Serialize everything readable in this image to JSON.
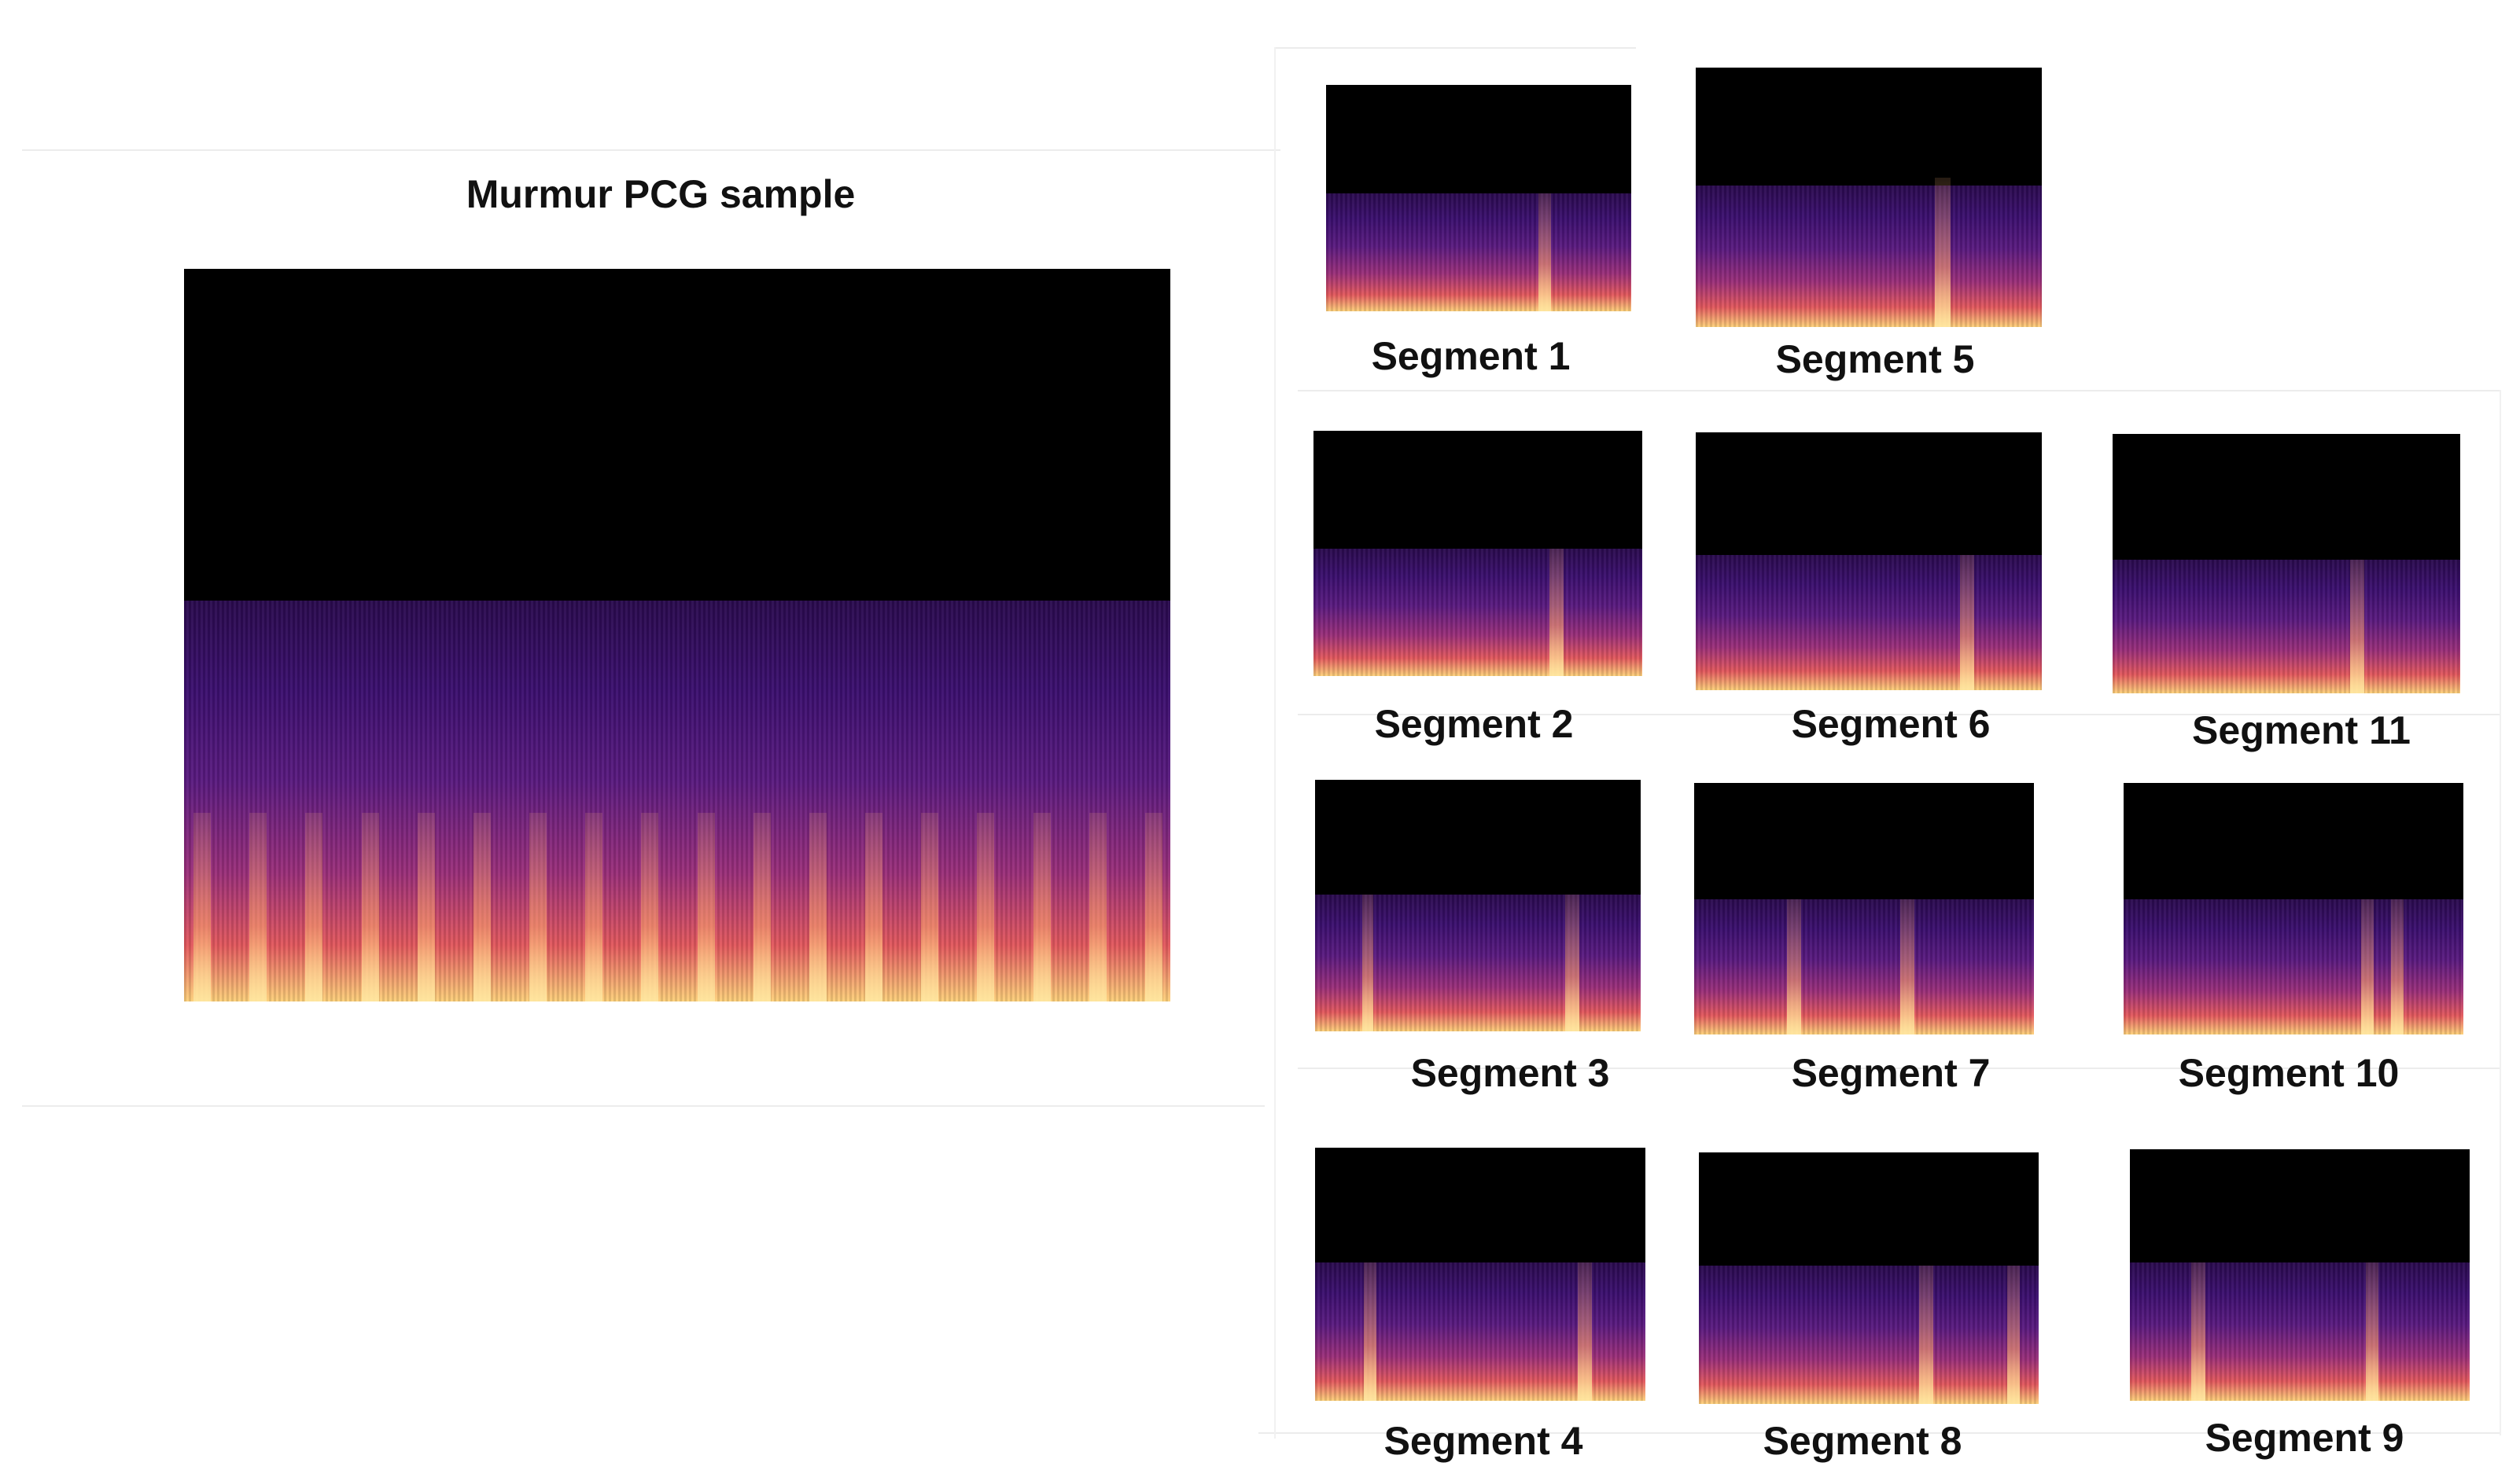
{
  "figure": {
    "main_title": "Murmur PCG sample",
    "segments": [
      {
        "label": "Segment 1"
      },
      {
        "label": "Segment 2"
      },
      {
        "label": "Segment 3"
      },
      {
        "label": "Segment 4"
      },
      {
        "label": "Segment 5"
      },
      {
        "label": "Segment 6"
      },
      {
        "label": "Segment 7"
      },
      {
        "label": "Segment 8"
      },
      {
        "label": "Segment 9"
      },
      {
        "label": "Segment 10"
      },
      {
        "label": "Segment 11"
      }
    ]
  },
  "colors": {
    "background": "#000000",
    "low_energy": "#3b0f6f",
    "mid_energy": "#9b2f7a",
    "high_energy": "#fcd07a"
  }
}
